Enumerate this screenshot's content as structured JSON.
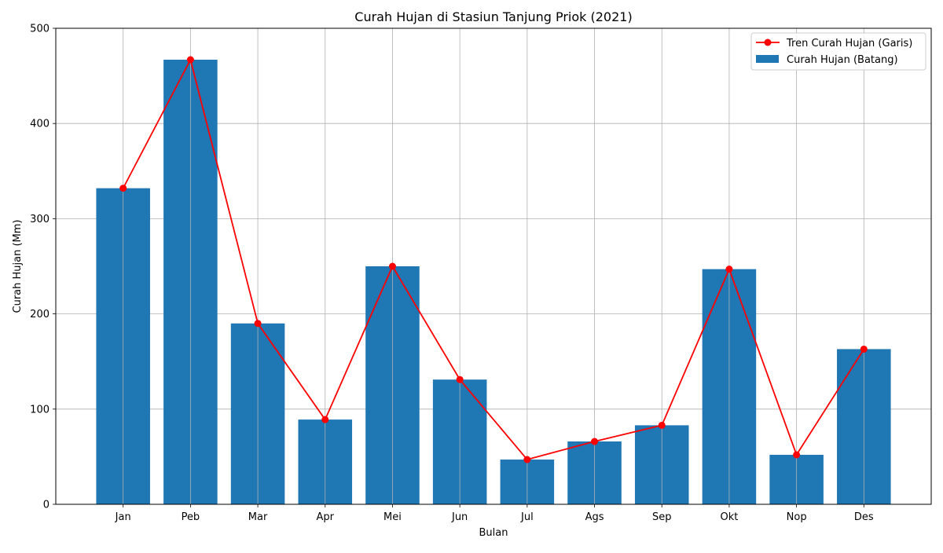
{
  "chart_data": {
    "type": "bar",
    "title": "Curah Hujan di Stasiun Tanjung Priok (2021)",
    "xlabel": "Bulan",
    "ylabel": "Curah Hujan (Mm)",
    "ylim": [
      0,
      500
    ],
    "yticks": [
      0,
      100,
      200,
      300,
      400,
      500
    ],
    "grid": true,
    "legend_position": "top-right",
    "categories": [
      "Jan",
      "Peb",
      "Mar",
      "Apr",
      "Mei",
      "Jun",
      "Jul",
      "Ags",
      "Sep",
      "Okt",
      "Nop",
      "Des"
    ],
    "series": [
      {
        "name": "Tren Curah Hujan (Garis)",
        "kind": "line",
        "color": "#ff0000",
        "values": [
          332,
          467,
          190,
          89,
          250,
          131,
          47,
          66,
          83,
          247,
          52,
          163
        ]
      },
      {
        "name": "Curah Hujan (Batang)",
        "kind": "bar",
        "color": "#1f77b4",
        "values": [
          332,
          467,
          190,
          89,
          250,
          131,
          47,
          66,
          83,
          247,
          52,
          163
        ]
      }
    ]
  }
}
